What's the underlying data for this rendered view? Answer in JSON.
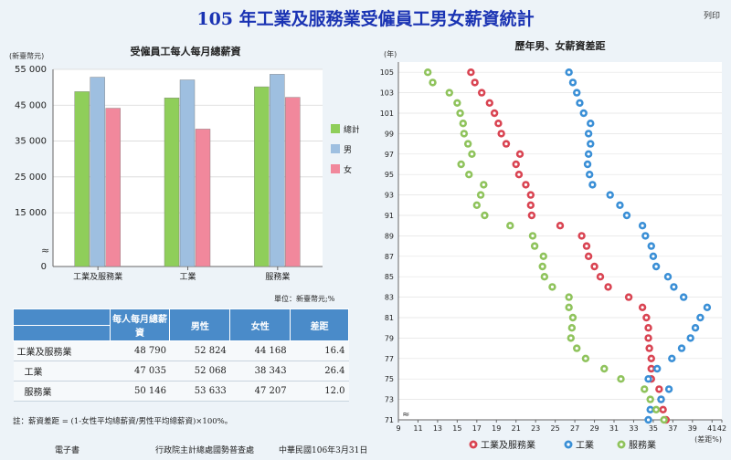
{
  "page": {
    "title": "105 年工業及服務業受僱員工男女薪資統計",
    "print_label": "列印",
    "unit_note": "單位：新臺幣元;%",
    "formula_note": "註：薪資差距 = (1-女性平均總薪資/男性平均總薪資)×100%。",
    "footer_left": "電子書",
    "footer_mid": "行政院主計總處國勢普查處",
    "footer_right": "中華民國106年3月31日"
  },
  "table": {
    "headers": {
      "a": "每人每月總薪資",
      "b": "男性",
      "c": "女性",
      "d": "差距"
    },
    "rows": [
      {
        "label": "工業及服務業",
        "total": "48 790",
        "male": "52 824",
        "female": "44 168",
        "gap": "16.4"
      },
      {
        "label": "工業",
        "total": "47 035",
        "male": "52 068",
        "female": "38 343",
        "gap": "26.4"
      },
      {
        "label": "服務業",
        "total": "50 146",
        "male": "53 633",
        "female": "47 207",
        "gap": "12.0"
      }
    ]
  },
  "chart_data": [
    {
      "type": "bar",
      "title": "受僱員工每人每月總薪資",
      "ylabel": "(新臺幣元)",
      "ylim": [
        0,
        55000
      ],
      "yticks": [
        0,
        15000,
        25000,
        35000,
        45000,
        55000
      ],
      "ytick_labels": [
        "0",
        "15 000",
        "25 000",
        "35 000",
        "45 000",
        "55 000"
      ],
      "categories": [
        "工業及服務業",
        "工業",
        "服務業"
      ],
      "series": [
        {
          "name": "總計",
          "color": "#8fce5a",
          "values": [
            48790,
            47035,
            50146
          ]
        },
        {
          "name": "男",
          "color": "#9ebfe0",
          "values": [
            52824,
            52068,
            53633
          ]
        },
        {
          "name": "女",
          "color": "#f1889c",
          "values": [
            44168,
            38343,
            47207
          ]
        }
      ],
      "legend_position": "right",
      "axis_break": true
    },
    {
      "type": "scatter",
      "title": "歷年男、女薪資差距",
      "ylabel": "(年)",
      "xlabel": "(差距%)",
      "xlim": [
        9,
        42
      ],
      "ylim": [
        71,
        106
      ],
      "xticks": [
        9,
        11,
        13,
        15,
        17,
        19,
        21,
        23,
        25,
        27,
        29,
        31,
        33,
        35,
        37,
        39,
        41,
        42
      ],
      "yticks": [
        71,
        73,
        75,
        77,
        79,
        81,
        83,
        85,
        87,
        89,
        91,
        93,
        95,
        97,
        99,
        101,
        103,
        105
      ],
      "y": [
        105,
        104,
        103,
        102,
        101,
        100,
        99,
        98,
        97,
        96,
        95,
        94,
        93,
        92,
        91,
        90,
        89,
        88,
        87,
        86,
        85,
        84,
        83,
        82,
        81,
        80,
        79,
        78,
        77,
        76,
        75,
        74,
        73,
        72,
        71
      ],
      "series": [
        {
          "name": "工業及服務業",
          "color": "#d94452",
          "values": [
            16.4,
            16.8,
            17.5,
            18.3,
            18.8,
            19.2,
            19.5,
            20.0,
            21.4,
            21.0,
            21.3,
            22.0,
            22.5,
            22.5,
            22.6,
            25.5,
            27.7,
            28.2,
            28.4,
            29.0,
            29.6,
            30.4,
            32.5,
            33.9,
            34.3,
            34.5,
            34.5,
            34.6,
            34.8,
            34.8,
            34.8,
            35.6,
            35.8,
            36.0,
            36.3
          ]
        },
        {
          "name": "工業",
          "color": "#3a8fd6",
          "values": [
            26.4,
            26.8,
            27.2,
            27.5,
            27.9,
            28.6,
            28.4,
            28.6,
            28.4,
            28.3,
            28.5,
            28.8,
            30.6,
            31.6,
            32.3,
            33.9,
            34.2,
            34.8,
            35.0,
            35.3,
            36.5,
            37.1,
            38.1,
            40.5,
            39.8,
            39.3,
            38.8,
            37.9,
            36.9,
            35.4,
            34.5,
            36.6,
            35.8,
            34.7,
            34.5
          ]
        },
        {
          "name": "服務業",
          "color": "#8fc35c",
          "values": [
            12.0,
            12.5,
            14.2,
            15.0,
            15.3,
            15.6,
            15.7,
            16.1,
            16.5,
            15.4,
            16.2,
            17.7,
            17.4,
            17.0,
            17.8,
            20.4,
            22.7,
            22.9,
            23.8,
            23.7,
            23.9,
            24.7,
            26.4,
            26.4,
            26.8,
            26.7,
            26.6,
            27.2,
            28.1,
            30.0,
            31.7,
            34.1,
            34.7,
            35.3,
            36.1
          ]
        }
      ],
      "legend_position": "bottom",
      "axis_break": true
    }
  ]
}
